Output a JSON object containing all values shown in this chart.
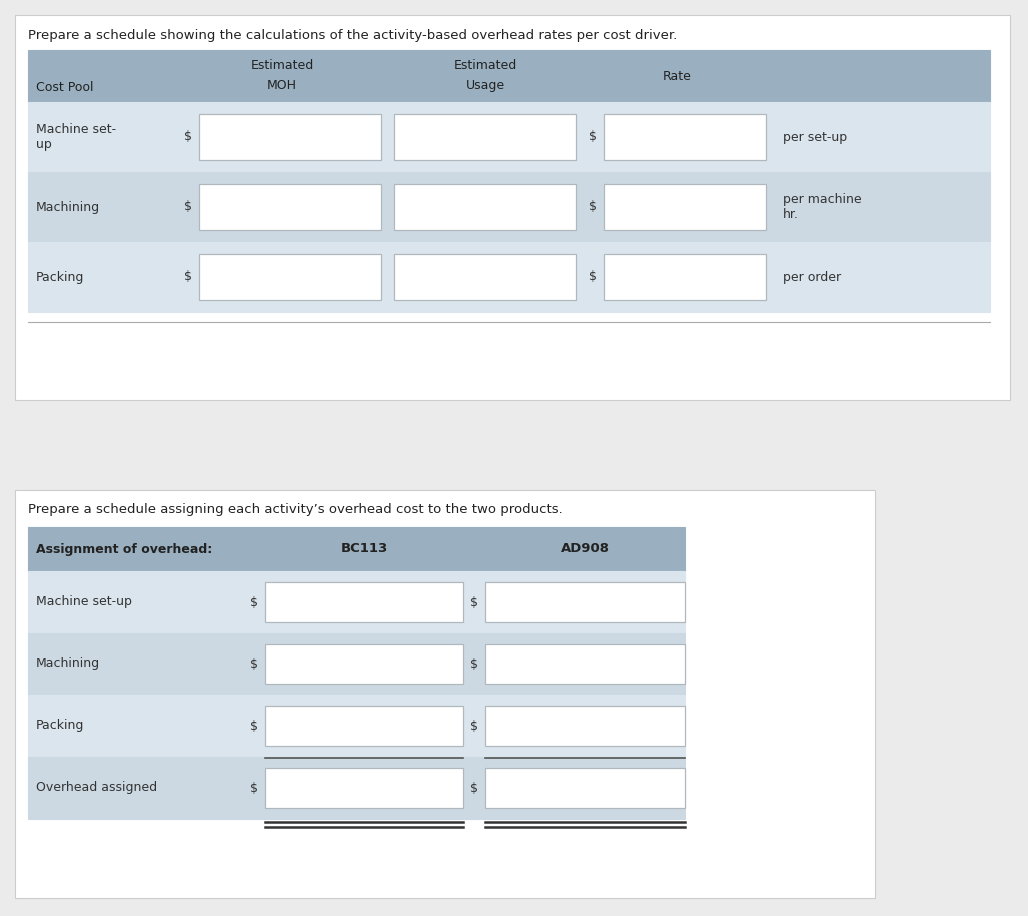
{
  "bg_color": "#ebebeb",
  "page_bg": "#ffffff",
  "header_bg": "#9ab0c0",
  "row_bg_light": "#dae5ed",
  "row_bg_mid": "#ccd9e3",
  "input_box_bg": "#ffffff",
  "input_box_border": "#b0b8be",
  "title1": "Prepare a schedule showing the calculations of the activity-based overhead rates per cost driver.",
  "title2": "Prepare a schedule assigning each activity’s overhead cost to the two products.",
  "t1_rows": [
    {
      "label": "Machine set-\nup",
      "suffix": "per set-up"
    },
    {
      "label": "Machining",
      "suffix": "per machine\nhr."
    },
    {
      "label": "Packing",
      "suffix": "per order"
    }
  ],
  "t2_rows": [
    {
      "label": "Machine set-up",
      "double_line": false
    },
    {
      "label": "Machining",
      "double_line": false
    },
    {
      "label": "Packing",
      "double_line": false
    },
    {
      "label": "Overhead assigned",
      "double_line": true
    }
  ]
}
